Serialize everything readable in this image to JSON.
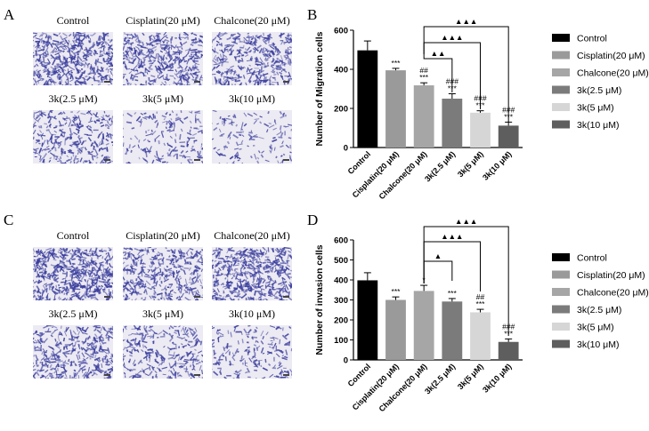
{
  "panels": {
    "A": "A",
    "B": "B",
    "C": "C",
    "D": "D"
  },
  "micrographs": {
    "top": [
      "Control",
      "Cisplatin(20 μM)",
      "Chalcone(20 μM)",
      "3k(2.5 μM)",
      "3k(5 μM)",
      "3k(10 μM)"
    ],
    "bottom": [
      "Control",
      "Cisplatin(20 μM)",
      "Chalcone(20 μM)",
      "3k(2.5 μM)",
      "3k(5 μM)",
      "3k(10 μM)"
    ]
  },
  "colors": {
    "bars": [
      "#000000",
      "#9a9a9a",
      "#a6a6a6",
      "#7b7b7b",
      "#d6d6d6",
      "#5e5e5e"
    ],
    "stain": "#3b3f9e"
  },
  "chart_data": [
    {
      "type": "bar",
      "panel": "B",
      "ylabel": "Number of Migration cells",
      "ylim": [
        0,
        600
      ],
      "yticks": [
        0,
        200,
        400,
        600
      ],
      "categories": [
        "Control",
        "Cisplatin(20 μM)",
        "Chalcone(20 μM)",
        "3k(2.5 μM)",
        "3k(5 μM)",
        "3k(10 μM)"
      ],
      "values": [
        497,
        395,
        318,
        250,
        178,
        112
      ],
      "errors": [
        48,
        10,
        13,
        25,
        10,
        18
      ],
      "annotations": [
        [],
        [
          "***"
        ],
        [
          "***",
          "##"
        ],
        [
          "***",
          "###"
        ],
        [
          "***",
          "###"
        ],
        [
          "***",
          "###"
        ]
      ],
      "comparisons": [
        {
          "from": 2,
          "to": 3,
          "label": "▲▲"
        },
        {
          "from": 2,
          "to": 4,
          "label": "▲▲▲"
        },
        {
          "from": 2,
          "to": 5,
          "label": "▲▲▲"
        }
      ],
      "legend": [
        "Control",
        "Cisplatin(20 μM)",
        "Chalcone(20 μM)",
        "3k(2.5 μM)",
        "3k(5 μM)",
        "3k(10 μM)"
      ],
      "legend_position": "right"
    },
    {
      "type": "bar",
      "panel": "D",
      "ylabel": "Number of invasion cells",
      "ylim": [
        0,
        600
      ],
      "yticks": [
        0,
        100,
        200,
        300,
        400,
        500,
        600
      ],
      "categories": [
        "Control",
        "Cisplatin(20 μM)",
        "Chalcone(20 μM)",
        "3k(2.5 μM)",
        "3k(5 μM)",
        "3k(10 μM)"
      ],
      "values": [
        398,
        300,
        345,
        292,
        238,
        90
      ],
      "errors": [
        38,
        15,
        28,
        15,
        15,
        15
      ],
      "annotations": [
        [],
        [
          "***"
        ],
        [
          "*"
        ],
        [
          "***"
        ],
        [
          "***",
          "##"
        ],
        [
          "***",
          "###"
        ]
      ],
      "comparisons": [
        {
          "from": 2,
          "to": 3,
          "label": "▲"
        },
        {
          "from": 2,
          "to": 4,
          "label": "▲▲▲"
        },
        {
          "from": 2,
          "to": 5,
          "label": "▲▲▲"
        }
      ],
      "legend": [
        "Control",
        "Cisplatin(20 μM)",
        "Chalcone(20 μM)",
        "3k(2.5 μM)",
        "3k(5 μM)",
        "3k(10 μM)"
      ],
      "legend_position": "right"
    }
  ]
}
